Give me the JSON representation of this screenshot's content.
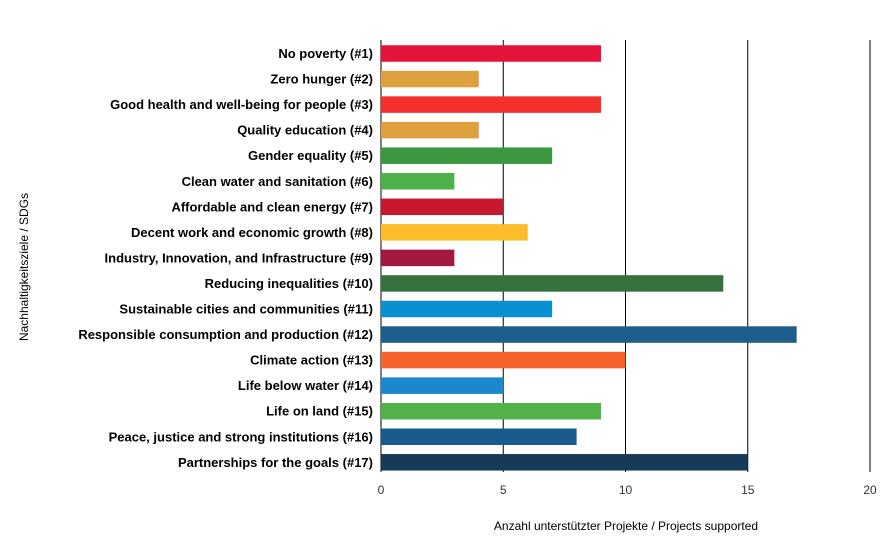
{
  "chart_data": {
    "type": "bar",
    "orientation": "horizontal",
    "categories": [
      "No poverty (#1)",
      "Zero hunger (#2)",
      "Good health and well-being for people (#3)",
      "Quality education (#4)",
      "Gender equality (#5)",
      "Clean water and sanitation (#6)",
      "Affordable and clean energy (#7)",
      "Decent work and economic growth (#8)",
      "Industry, Innovation, and Infrastructure (#9)",
      "Reducing inequalities (#10)",
      "Sustainable cities and communities (#11)",
      "Responsible consumption and production (#12)",
      "Climate action (#13)",
      "Life below water (#14)",
      "Life on land (#15)",
      "Peace, justice and strong institutions (#16)",
      "Partnerships for the goals (#17)"
    ],
    "values": [
      9,
      4,
      9,
      4,
      7,
      3,
      5,
      6,
      3,
      14,
      7,
      17,
      10,
      5,
      9,
      8,
      15
    ],
    "colors": [
      "#e5143b",
      "#dea03f",
      "#f5302f",
      "#dea03f",
      "#3c973f",
      "#4db048",
      "#c9172d",
      "#fbbd2a",
      "#a3183e",
      "#37713f",
      "#0a8fd1",
      "#1c5f8c",
      "#f6602b",
      "#1b87cf",
      "#53b14a",
      "#1b5a8c",
      "#183a59"
    ],
    "xlabel": "Anzahl unterstützter Projekte / Projects supported",
    "ylabel": "Nachhaltigkeitsziele / SDGs",
    "xlim": [
      0,
      20
    ],
    "xticks": [
      0,
      5,
      10,
      15,
      20
    ],
    "grid": "vertical",
    "legend": "none"
  }
}
